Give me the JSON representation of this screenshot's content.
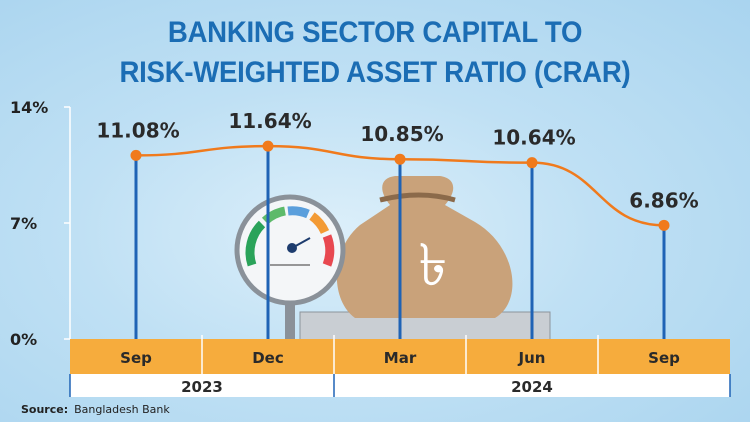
{
  "title_line1": "BANKING SECTOR CAPITAL TO",
  "title_line2": "RISK-WEIGHTED ASSET RATIO (CRAR)",
  "source_label": "Source:",
  "source_value": "Bangladesh Bank",
  "colors": {
    "title": "#1b6db4",
    "line": "#f07a1c",
    "bar": "#1f63b5",
    "band": "#f6ac3d"
  },
  "chart_data": {
    "type": "line",
    "title": "BANKING SECTOR CAPITAL TO RISK-WEIGHTED ASSET RATIO (CRAR)",
    "categories": [
      "Sep",
      "Dec",
      "Mar",
      "Jun",
      "Sep"
    ],
    "years": [
      {
        "label": "2023",
        "span": 2
      },
      {
        "label": "2024",
        "span": 3
      }
    ],
    "values": [
      11.08,
      11.64,
      10.85,
      10.64,
      6.86
    ],
    "data_labels": [
      "11.08%",
      "11.64%",
      "10.85%",
      "10.64%",
      "6.86%"
    ],
    "yticks": [
      {
        "v": 0,
        "label": "0%"
      },
      {
        "v": 7,
        "label": "7%"
      },
      {
        "v": 14,
        "label": "14%"
      }
    ],
    "ylim": [
      0,
      14
    ],
    "xlabel": "",
    "ylabel": ""
  }
}
